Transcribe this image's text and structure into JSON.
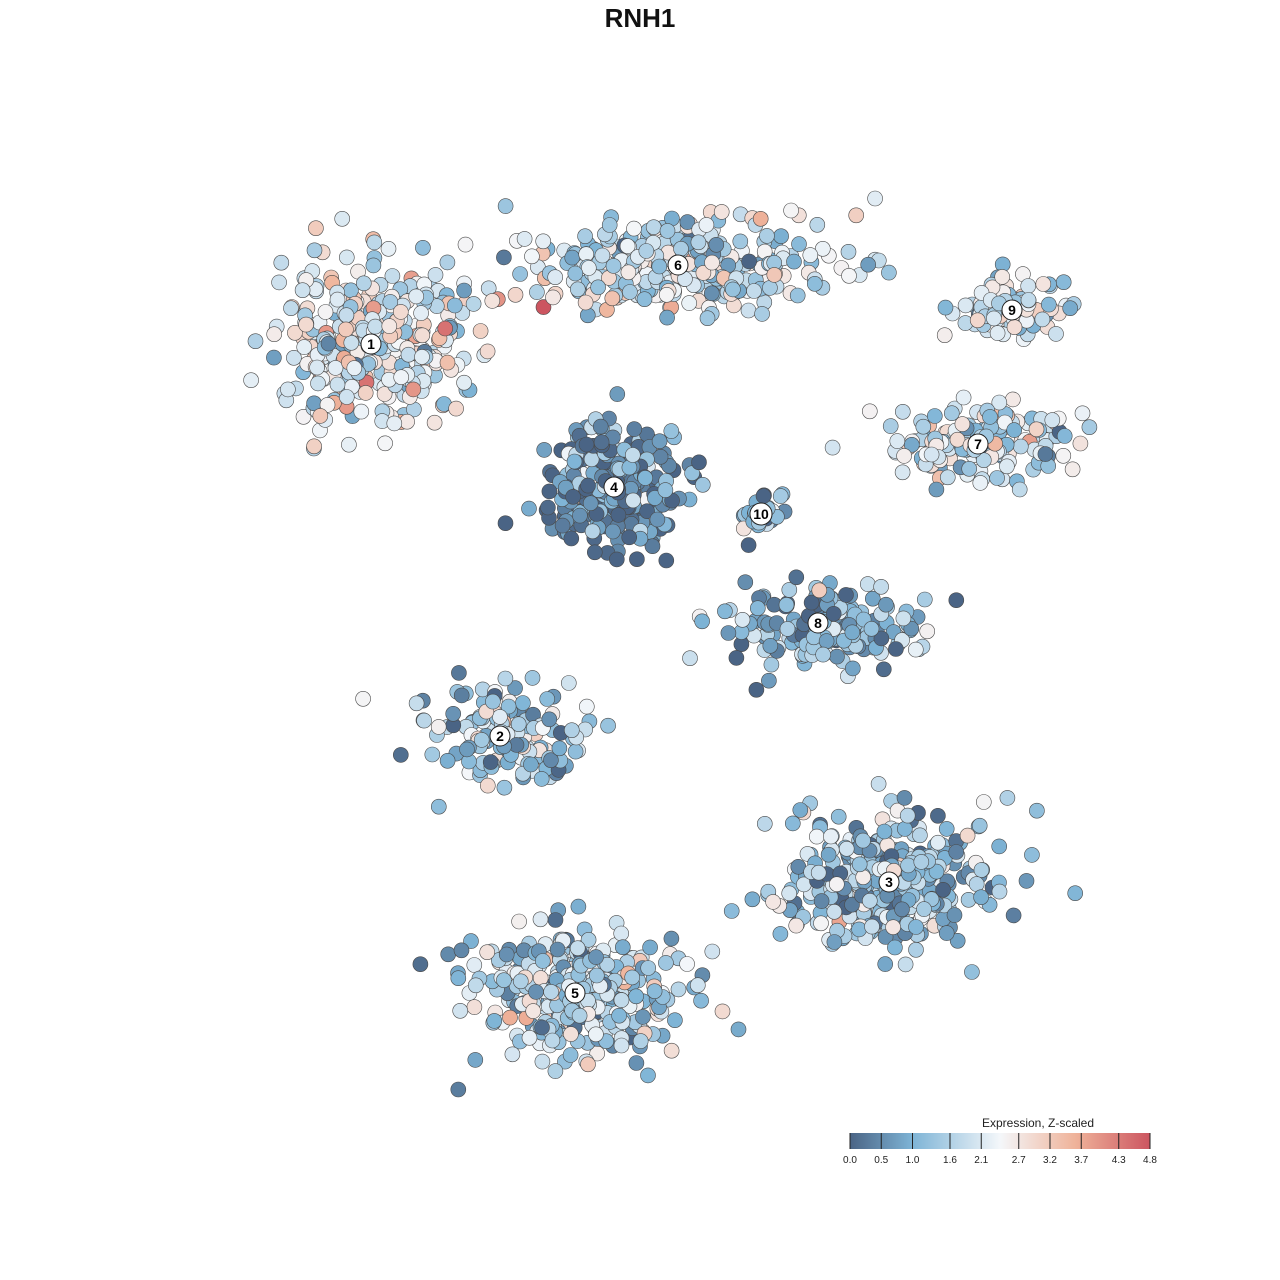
{
  "chart_data": {
    "type": "scatter",
    "title": "RNH1",
    "xlabel": "",
    "ylabel": "",
    "grid": false,
    "axes_visible": false,
    "point_style": {
      "edge_color": "#4a4a4a",
      "fill_by": "expression"
    },
    "legend": {
      "title": "Expression, Z-scaled",
      "placement": "bottom-right",
      "ticks": [
        0.0,
        0.5,
        1.0,
        1.6,
        2.1,
        2.7,
        3.2,
        3.7,
        4.3,
        4.8
      ],
      "tick_labels": [
        "0.0",
        "0.5",
        "1.0",
        "1.6",
        "2.1",
        "2.7",
        "3.2",
        "3.7",
        "4.3",
        "4.8"
      ],
      "range": [
        0.0,
        4.8
      ],
      "color_stops": [
        {
          "value": 0.0,
          "color": "#4a6485"
        },
        {
          "value": 1.0,
          "color": "#7eb4d6"
        },
        {
          "value": 2.4,
          "color": "#f4f7fa"
        },
        {
          "value": 3.6,
          "color": "#efb39a"
        },
        {
          "value": 4.8,
          "color": "#cc5560"
        }
      ]
    },
    "clusters": [
      {
        "label": "1",
        "center": [
          371,
          344
        ],
        "mean_expression": 2.2,
        "spread": [
          85,
          70
        ]
      },
      {
        "label": "2",
        "center": [
          500,
          736
        ],
        "mean_expression": 1.4,
        "spread": [
          75,
          45
        ]
      },
      {
        "label": "3",
        "center": [
          889,
          882
        ],
        "mean_expression": 1.3,
        "spread": [
          95,
          60
        ]
      },
      {
        "label": "4",
        "center": [
          614,
          487
        ],
        "mean_expression": 0.5,
        "spread": [
          65,
          55
        ]
      },
      {
        "label": "5",
        "center": [
          575,
          993
        ],
        "mean_expression": 1.6,
        "spread": [
          90,
          55
        ]
      },
      {
        "label": "6",
        "center": [
          678,
          265
        ],
        "mean_expression": 1.9,
        "spread": [
          140,
          40
        ]
      },
      {
        "label": "7",
        "center": [
          978,
          444
        ],
        "mean_expression": 2.0,
        "spread": [
          90,
          35
        ]
      },
      {
        "label": "8",
        "center": [
          818,
          623
        ],
        "mean_expression": 1.0,
        "spread": [
          90,
          40
        ]
      },
      {
        "label": "9",
        "center": [
          1012,
          310
        ],
        "mean_expression": 2.1,
        "spread": [
          50,
          25
        ]
      },
      {
        "label": "10",
        "center": [
          761,
          514
        ],
        "mean_expression": 1.4,
        "spread": [
          20,
          20
        ]
      }
    ]
  }
}
